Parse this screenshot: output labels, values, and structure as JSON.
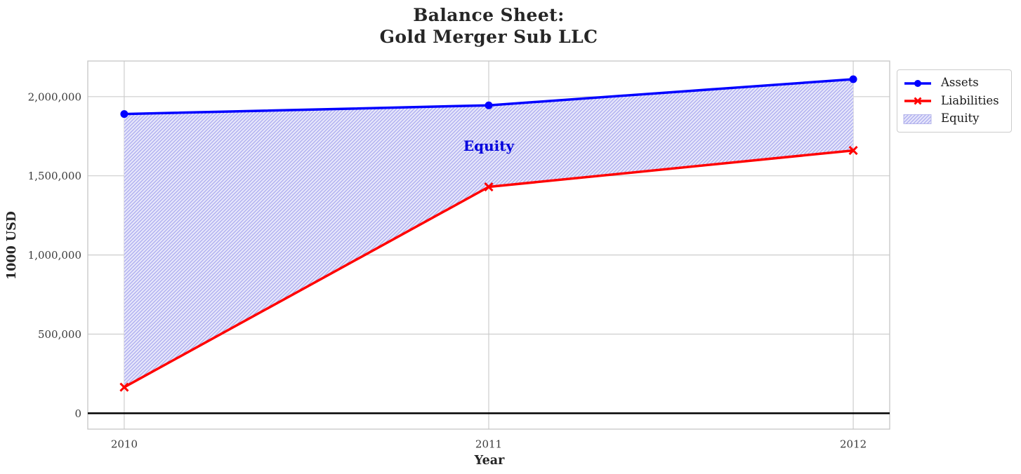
{
  "title": {
    "line1": "Balance Sheet:",
    "line2": "Gold Merger Sub LLC"
  },
  "chart_data": {
    "type": "line",
    "title": "Balance Sheet: Gold Merger Sub LLC",
    "xlabel": "Year",
    "ylabel": "1000 USD",
    "x": [
      2010,
      2011,
      2012
    ],
    "xtick_labels": [
      "2010",
      "2011",
      "2012"
    ],
    "yticks": [
      0,
      500000,
      1000000,
      1500000,
      2000000
    ],
    "ytick_labels": [
      "0",
      "500,000",
      "1,000,000",
      "1,500,000",
      "2,000,000"
    ],
    "xlim": [
      2009.9,
      2012.1
    ],
    "ylim": [
      -100000,
      2225000
    ],
    "grid": true,
    "zero_line": true,
    "legend_position": "upper right",
    "series": [
      {
        "name": "Assets",
        "color": "#0000ff",
        "marker": "circle",
        "values": [
          1890000,
          1945000,
          2110000
        ]
      },
      {
        "name": "Liabilities",
        "color": "#ff0000",
        "marker": "x",
        "values": [
          165000,
          1430000,
          1660000
        ]
      }
    ],
    "equity_fill": {
      "name": "Equity",
      "between": [
        "Assets",
        "Liabilities"
      ],
      "face_color": "#e6e6fa",
      "hatch_color": "#ababef",
      "hatch": "//",
      "label_x": 2011,
      "label_y": 1690000,
      "label_color": "#0000dd"
    }
  }
}
